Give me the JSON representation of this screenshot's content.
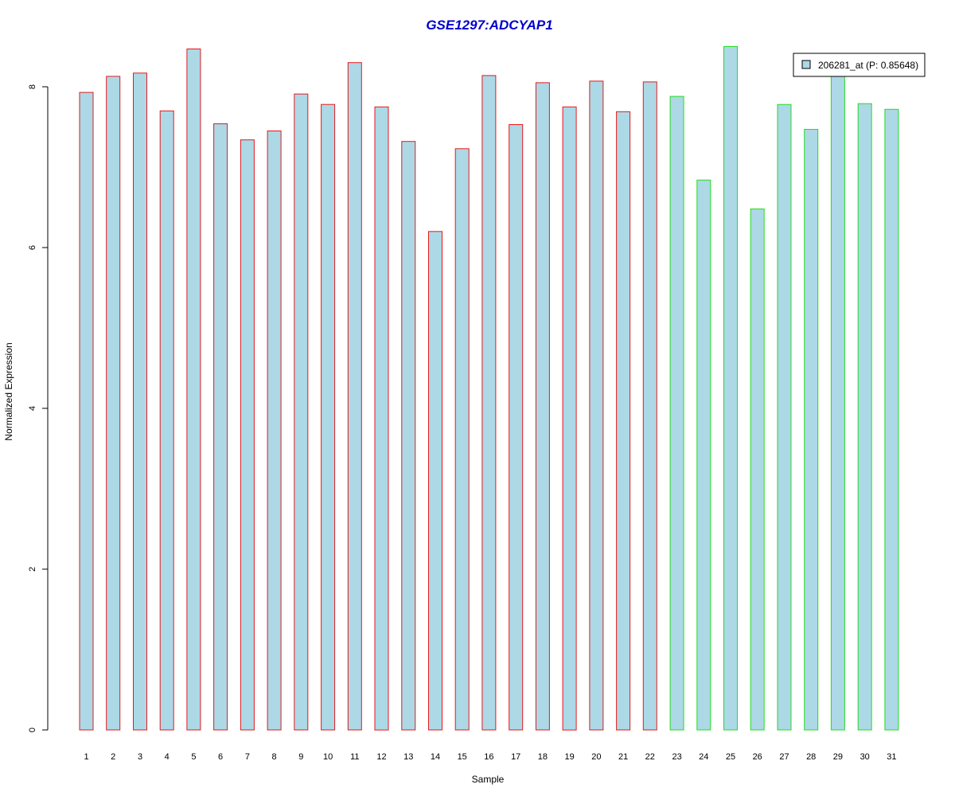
{
  "chart_data": {
    "type": "bar",
    "title": "GSE1297:ADCYAP1",
    "xlabel": "Sample",
    "ylabel": "Normalized Expression",
    "categories": [
      "1",
      "2",
      "3",
      "4",
      "5",
      "6",
      "7",
      "8",
      "9",
      "10",
      "11",
      "12",
      "13",
      "14",
      "15",
      "16",
      "17",
      "18",
      "19",
      "20",
      "21",
      "22",
      "23",
      "24",
      "25",
      "26",
      "27",
      "28",
      "29",
      "30",
      "31"
    ],
    "series": [
      {
        "name": "206281_at (P: 0.85648)",
        "values": [
          7.93,
          8.13,
          8.17,
          7.7,
          8.47,
          7.54,
          7.34,
          7.45,
          7.91,
          7.78,
          8.3,
          7.75,
          7.32,
          6.2,
          7.23,
          8.14,
          7.53,
          8.05,
          7.75,
          8.07,
          7.69,
          8.06,
          7.88,
          6.84,
          8.5,
          6.48,
          7.78,
          7.47,
          8.2,
          7.79,
          7.72
        ]
      }
    ],
    "group_border_colors": [
      "#e41a1c",
      "#e41a1c",
      "#e41a1c",
      "#e41a1c",
      "#e41a1c",
      "#e41a1c",
      "#e41a1c",
      "#e41a1c",
      "#e41a1c",
      "#e41a1c",
      "#e41a1c",
      "#e41a1c",
      "#e41a1c",
      "#e41a1c",
      "#e41a1c",
      "#e41a1c",
      "#e41a1c",
      "#e41a1c",
      "#e41a1c",
      "#e41a1c",
      "#e41a1c",
      "#e41a1c",
      "#22dd22",
      "#22dd22",
      "#22dd22",
      "#22dd22",
      "#22dd22",
      "#22dd22",
      "#22dd22",
      "#22dd22",
      "#22dd22"
    ],
    "bar_fill": "#add8e6",
    "title_color": "#0000cc",
    "yticks": [
      0,
      2,
      4,
      6,
      8
    ],
    "ylim": [
      0,
      8.5
    ],
    "grid": false,
    "legend_position": "top-right"
  }
}
